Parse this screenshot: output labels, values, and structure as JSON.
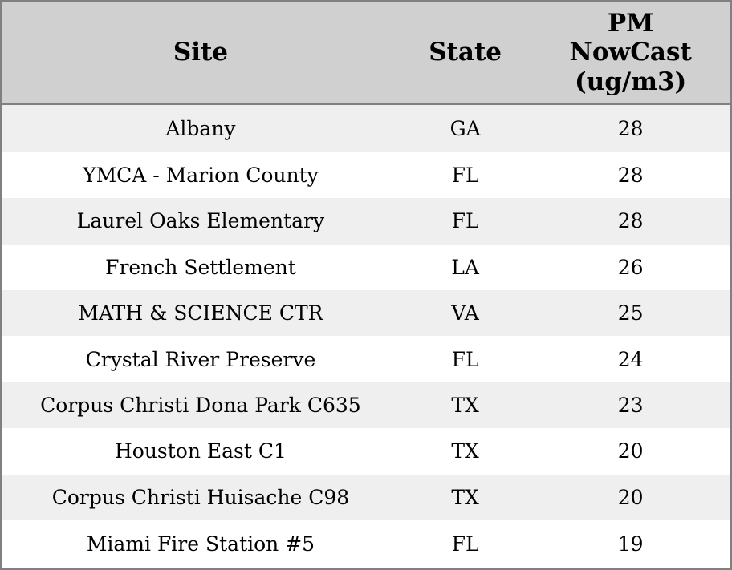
{
  "chart_data": {
    "type": "table",
    "title": "",
    "columns": [
      {
        "id": "site",
        "label": "Site"
      },
      {
        "id": "state",
        "label": "State"
      },
      {
        "id": "pm_nowcast",
        "label": "PM\nNowCast\n(ug/m3)"
      }
    ],
    "rows": [
      {
        "site": "Albany",
        "state": "GA",
        "pm_nowcast": 28
      },
      {
        "site": "YMCA - Marion County",
        "state": "FL",
        "pm_nowcast": 28
      },
      {
        "site": "Laurel Oaks Elementary",
        "state": "FL",
        "pm_nowcast": 28
      },
      {
        "site": "French Settlement",
        "state": "LA",
        "pm_nowcast": 26
      },
      {
        "site": "MATH & SCIENCE CTR",
        "state": "VA",
        "pm_nowcast": 25
      },
      {
        "site": "Crystal River Preserve",
        "state": "FL",
        "pm_nowcast": 24
      },
      {
        "site": "Corpus Christi Dona Park C635",
        "state": "TX",
        "pm_nowcast": 23
      },
      {
        "site": "Houston East C1",
        "state": "TX",
        "pm_nowcast": 20
      },
      {
        "site": "Corpus Christi Huisache C98",
        "state": "TX",
        "pm_nowcast": 20
      },
      {
        "site": "Miami Fire Station #5",
        "state": "FL",
        "pm_nowcast": 19
      }
    ],
    "layout": {
      "column_alignment": "center",
      "alternating_rows": true,
      "gridlines": "outer-border-and-header-separator-only"
    }
  },
  "colors": {
    "header_bg": "#d0d0d0",
    "row_alt_bg": "#efefef",
    "row_bg": "#ffffff",
    "border": "#808080",
    "text": "#000000"
  }
}
